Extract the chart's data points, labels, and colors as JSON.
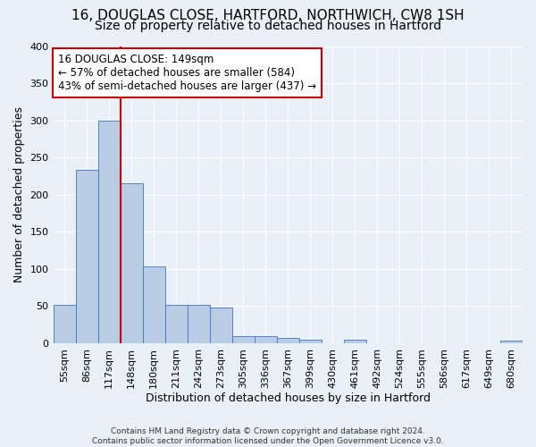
{
  "title_line1": "16, DOUGLAS CLOSE, HARTFORD, NORTHWICH, CW8 1SH",
  "title_line2": "Size of property relative to detached houses in Hartford",
  "xlabel": "Distribution of detached houses by size in Hartford",
  "ylabel": "Number of detached properties",
  "footnote": "Contains HM Land Registry data © Crown copyright and database right 2024.\nContains public sector information licensed under the Open Government Licence v3.0.",
  "bins": [
    "55sqm",
    "86sqm",
    "117sqm",
    "148sqm",
    "180sqm",
    "211sqm",
    "242sqm",
    "273sqm",
    "305sqm",
    "336sqm",
    "367sqm",
    "399sqm",
    "430sqm",
    "461sqm",
    "492sqm",
    "524sqm",
    "555sqm",
    "586sqm",
    "617sqm",
    "649sqm",
    "680sqm"
  ],
  "values": [
    52,
    233,
    300,
    215,
    103,
    52,
    52,
    48,
    10,
    10,
    7,
    5,
    0,
    5,
    0,
    0,
    0,
    0,
    0,
    0,
    3
  ],
  "bar_color": "#b8cce4",
  "bar_edge_color": "#4472c4",
  "vline_index": 3,
  "vline_color": "#cc0000",
  "annotation_text": "16 DOUGLAS CLOSE: 149sqm\n← 57% of detached houses are smaller (584)\n43% of semi-detached houses are larger (437) →",
  "annotation_box_color": "white",
  "annotation_box_edge_color": "#cc0000",
  "ylim": [
    0,
    400
  ],
  "yticks": [
    0,
    50,
    100,
    150,
    200,
    250,
    300,
    350,
    400
  ],
  "background_color": "#eaf0f8",
  "grid_color": "white",
  "title_fontsize": 11,
  "subtitle_fontsize": 10,
  "axis_label_fontsize": 9,
  "tick_fontsize": 8,
  "annotation_fontsize": 8.5,
  "footnote_fontsize": 6.5
}
